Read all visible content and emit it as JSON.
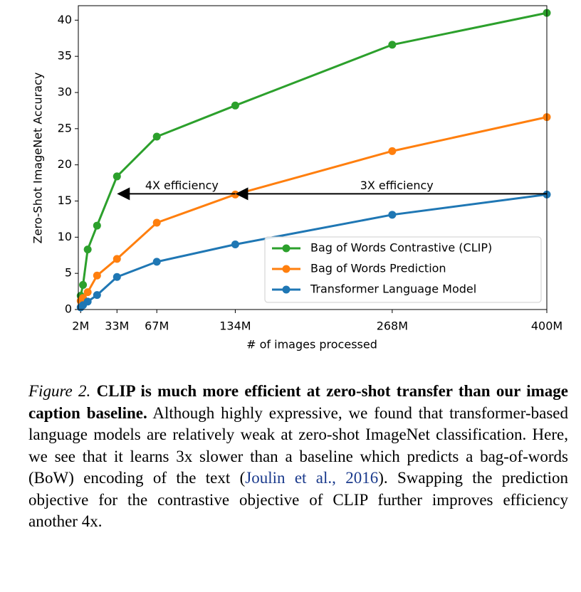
{
  "chart_data": {
    "type": "line",
    "y_label": "Zero-Shot ImageNet Accuracy",
    "x_label": "# of images processed",
    "x": [
      2,
      4,
      8,
      16,
      33,
      67,
      134,
      268,
      400
    ],
    "series": [
      {
        "name": "Bag of Words Contrastive (CLIP)",
        "color": "#2ca02c",
        "values": [
          1.9,
          3.4,
          8.3,
          11.6,
          18.4,
          23.9,
          28.2,
          36.6,
          41.0
        ]
      },
      {
        "name": "Bag of Words Prediction",
        "color": "#ff7f0e",
        "values": [
          1.2,
          1.6,
          2.4,
          4.7,
          7.0,
          12.0,
          15.9,
          21.9,
          26.6
        ]
      },
      {
        "name": "Transformer Language Model",
        "color": "#1f77b4",
        "values": [
          0.3,
          0.6,
          1.1,
          2.0,
          4.5,
          6.6,
          9.0,
          13.1,
          15.9
        ]
      }
    ],
    "xlim": [
      0,
      400
    ],
    "ylim": [
      0,
      42
    ],
    "xticks": [
      {
        "value": 2,
        "label": "2M"
      },
      {
        "value": 33,
        "label": "33M"
      },
      {
        "value": 67,
        "label": "67M"
      },
      {
        "value": 134,
        "label": "134M"
      },
      {
        "value": 268,
        "label": "268M"
      },
      {
        "value": 400,
        "label": "400M"
      }
    ],
    "yticks": [
      0,
      5,
      10,
      15,
      20,
      25,
      30,
      35,
      40
    ],
    "legend": "lower right",
    "annotations": [
      {
        "text": "4X efficiency",
        "x_from": 134,
        "x_to": 33,
        "y": 16
      },
      {
        "text": "3X efficiency",
        "x_from": 400,
        "x_to": 134,
        "y": 16
      }
    ]
  },
  "caption": {
    "label": "Figure 2.",
    "bold": "CLIP is much more efficient at zero-shot transfer than our image caption baseline.",
    "text_before": "Although highly expressive, we found that transformer-based language models are relatively weak at zero-shot ImageNet classification. Here, we see that it learns 3x slower than a baseline which predicts a bag-of-words (BoW) encoding of the text (",
    "cite_author": "Joulin et al.,",
    "cite_year": "2016",
    "text_after": "). Swapping the prediction objective for the contrastive objective of CLIP further improves efficiency another 4x."
  }
}
